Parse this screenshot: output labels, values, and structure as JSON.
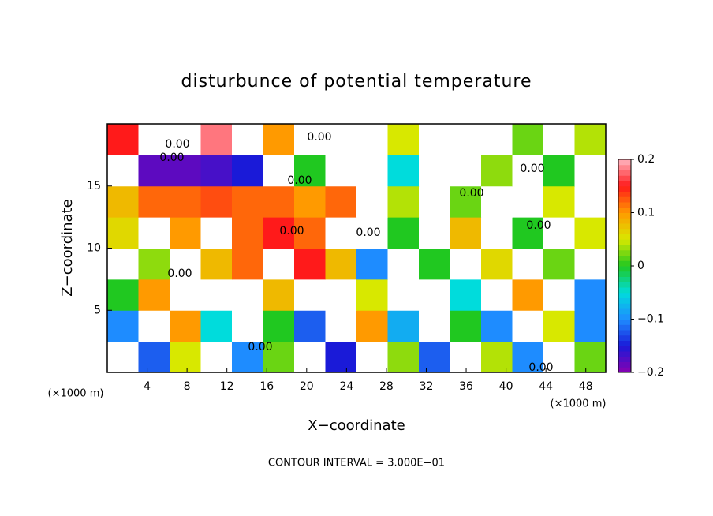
{
  "chart_data": {
    "type": "heatmap",
    "title": "disturbunce of potential temperature",
    "x_label": "X−coordinate",
    "y_label": "Z−coordinate",
    "x_unit": "(×1000 m)",
    "annotation": "CONTOUR INTERVAL = 3.000E−01",
    "xlim": [
      0,
      50
    ],
    "ylim": [
      0,
      20
    ],
    "xticks": [
      4,
      8,
      12,
      16,
      20,
      24,
      28,
      32,
      36,
      40,
      44,
      48
    ],
    "yticks": [
      5,
      10,
      15
    ],
    "clim": [
      -0.2,
      0.2
    ],
    "colorbar_ticks": [
      {
        "value": -0.2,
        "label": "−0.2"
      },
      {
        "value": -0.1,
        "label": "−0.1"
      },
      0,
      0.1,
      0.2
    ],
    "colormap": [
      "#8a00b0",
      "#1a1ad8",
      "#1e8cff",
      "#00dcdc",
      "#20c820",
      "#d8e800",
      "#ff9a00",
      "#ff1a1a",
      "#ffb4c0"
    ],
    "over_color": "#ffffff",
    "contour_labels": [
      "0.00",
      "0.00",
      "0.00",
      "0.00",
      "0.00",
      "0.00",
      "0.00",
      "0.00",
      "0.00",
      "0.00",
      "0.00",
      "0.00"
    ],
    "rows": [
      [
        0.25,
        -0.12,
        0.05,
        0.25,
        -0.1,
        0.02,
        0.25,
        -0.15,
        0.25,
        0.03,
        -0.12,
        0.25,
        0.04,
        -0.1,
        0.25,
        0.02
      ],
      [
        -0.1,
        0.25,
        0.1,
        -0.05,
        0.25,
        0.0,
        -0.12,
        0.25,
        0.1,
        -0.08,
        0.25,
        0.0,
        -0.1,
        0.25,
        0.05,
        -0.1
      ],
      [
        0.0,
        0.1,
        0.25,
        0.25,
        0.25,
        0.08,
        0.25,
        0.25,
        0.05,
        0.25,
        0.25,
        -0.05,
        0.25,
        0.1,
        0.25,
        -0.1
      ],
      [
        0.25,
        0.03,
        0.25,
        0.08,
        0.12,
        0.25,
        0.15,
        0.08,
        -0.1,
        0.25,
        0.0,
        0.25,
        0.06,
        0.25,
        0.02,
        0.25
      ],
      [
        0.06,
        0.25,
        0.1,
        0.25,
        0.12,
        0.15,
        0.12,
        0.25,
        0.25,
        0.0,
        0.25,
        0.08,
        0.25,
        0.0,
        0.25,
        0.05
      ],
      [
        0.08,
        0.12,
        0.12,
        0.13,
        0.12,
        0.12,
        0.1,
        0.12,
        0.25,
        0.04,
        0.25,
        0.02,
        0.25,
        0.25,
        0.05,
        0.25
      ],
      [
        0.25,
        -0.18,
        -0.18,
        -0.17,
        -0.15,
        0.25,
        0.0,
        0.25,
        0.25,
        -0.05,
        0.25,
        0.25,
        0.03,
        0.25,
        0.0,
        0.25
      ],
      [
        0.15,
        0.25,
        0.25,
        0.18,
        0.25,
        0.1,
        0.25,
        0.25,
        0.25,
        0.05,
        0.25,
        0.25,
        0.25,
        0.02,
        0.25,
        0.04
      ]
    ]
  }
}
